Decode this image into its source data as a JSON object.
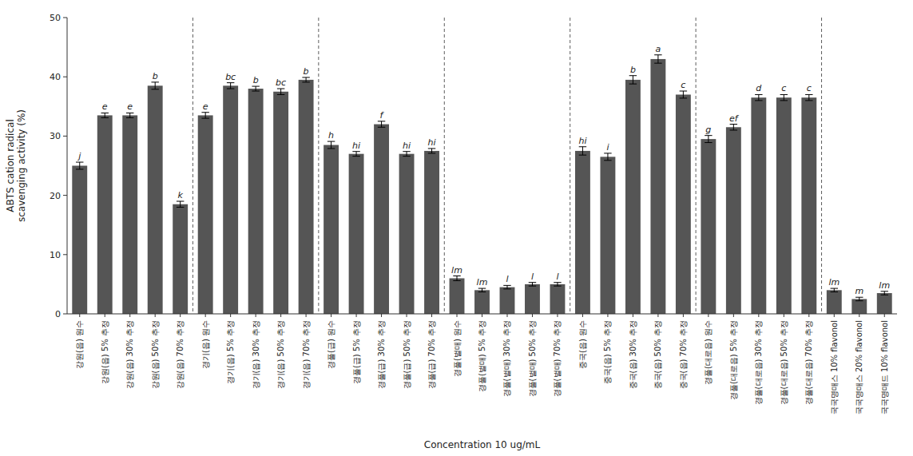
{
  "chart_data": {
    "type": "bar",
    "xlabel": "Concentration 10 ug/mL",
    "ylabel": "ABTS cation radical\nscavenging activity (%)",
    "ylim": [
      0,
      50
    ],
    "yticks": [
      0,
      10,
      20,
      30,
      40,
      50
    ],
    "color": "#555555",
    "grid": false,
    "categories": [
      "강원(읍) 원수",
      "강원(읍) 5% 추정",
      "강원(읍) 30% 추정",
      "강원(읍) 50% 추정",
      "강원(읍) 70% 추정",
      "경기(읍) 원수",
      "경기(읍) 5% 추정",
      "경기(읍) 30% 추정",
      "경기(읍) 50% 추정",
      "경기(읍) 70% 추정",
      "경풀(급) 원수",
      "경풀(급) 5% 추정",
      "경풀(급) 30% 추정",
      "경풀(급) 50% 추정",
      "경풀(급) 70% 추정",
      "경풀(벌매) 원수",
      "경풀(벌매) 5% 추정",
      "경풀(벌매) 30% 추정",
      "경풀(벌매) 50% 추정",
      "경풀(벌매) 70% 추정",
      "중국(읍) 원수",
      "중국(읍) 5% 추정",
      "중국(읍) 30% 추정",
      "중국(읍) 50% 추정",
      "중국(읍) 70% 추정",
      "경풀(대로읍) 원수",
      "경풀(대로읍) 5% 추정",
      "경풀(대로읍) 30% 추정",
      "경풀(대로읍) 50% 추정",
      "경풀(대로읍) 70% 추정",
      "국국명매스 10% flavonol",
      "국국명매스 20% flavonol",
      "국국명매드 10% flavonol"
    ],
    "values": [
      25.0,
      33.5,
      33.5,
      38.5,
      18.5,
      33.5,
      38.5,
      38.0,
      37.5,
      39.5,
      28.5,
      27.0,
      32.0,
      27.0,
      27.5,
      6.0,
      4.0,
      4.5,
      5.0,
      5.0,
      27.5,
      26.5,
      39.5,
      43.0,
      37.0,
      29.5,
      31.5,
      36.5,
      36.5,
      36.5,
      4.0,
      2.5,
      3.5
    ],
    "errors": [
      0.6,
      0.4,
      0.4,
      0.6,
      0.5,
      0.5,
      0.5,
      0.4,
      0.5,
      0.4,
      0.6,
      0.4,
      0.5,
      0.4,
      0.4,
      0.4,
      0.3,
      0.3,
      0.3,
      0.3,
      0.7,
      0.6,
      0.7,
      0.7,
      0.6,
      0.6,
      0.5,
      0.5,
      0.5,
      0.5,
      0.3,
      0.3,
      0.3
    ],
    "annotations": [
      "j",
      "e",
      "e",
      "b",
      "k",
      "e",
      "bc",
      "b",
      "bc",
      "b",
      "h",
      "hi",
      "f",
      "hi",
      "hi",
      "lm",
      "lm",
      "l",
      "l",
      "l",
      "hi",
      "i",
      "b",
      "a",
      "c",
      "g",
      "ef",
      "d",
      "c",
      "c",
      "lm",
      "m",
      "lm"
    ]
  }
}
